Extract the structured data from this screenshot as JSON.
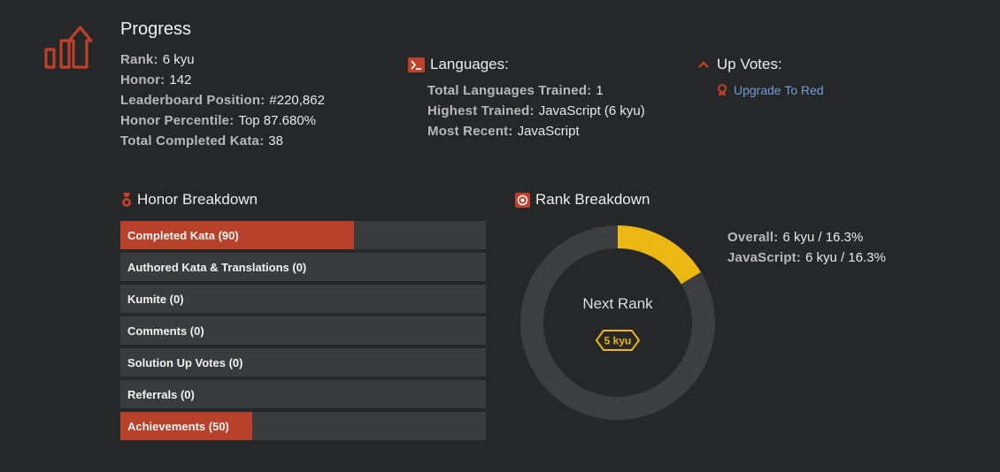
{
  "progress": {
    "title": "Progress",
    "stats": [
      {
        "label": "Rank:",
        "value": "6 kyu"
      },
      {
        "label": "Honor:",
        "value": "142"
      },
      {
        "label": "Leaderboard Position:",
        "value": "#220,862"
      },
      {
        "label": "Honor Percentile:",
        "value": "Top 87.680%"
      },
      {
        "label": "Total Completed Kata:",
        "value": "38"
      }
    ]
  },
  "languages": {
    "title": "Languages:",
    "icon": "terminal-icon",
    "stats": [
      {
        "label": "Total Languages Trained:",
        "value": "1"
      },
      {
        "label": "Highest Trained:",
        "value": "JavaScript (6 kyu)"
      },
      {
        "label": "Most Recent:",
        "value": "JavaScript"
      }
    ]
  },
  "upvotes": {
    "title": "Up Votes:",
    "icon": "chevron-up-icon",
    "link": {
      "label": "Upgrade To Red",
      "icon": "ribbon-icon"
    }
  },
  "honor_breakdown": {
    "title": "Honor Breakdown",
    "icon": "medal-icon",
    "bars": [
      {
        "label": "Completed Kata (90)",
        "fill": 0.64
      },
      {
        "label": "Authored Kata & Translations (0)",
        "fill": 0
      },
      {
        "label": "Kumite (0)",
        "fill": 0
      },
      {
        "label": "Comments (0)",
        "fill": 0
      },
      {
        "label": "Solution Up Votes (0)",
        "fill": 0
      },
      {
        "label": "Referrals (0)",
        "fill": 0
      },
      {
        "label": "Achievements (50)",
        "fill": 0.36
      }
    ]
  },
  "rank_breakdown": {
    "title": "Rank Breakdown",
    "icon": "target-icon",
    "donut": {
      "progress": 0.163,
      "center_label": "Next Rank",
      "badge": "5 kyu"
    },
    "stats": [
      {
        "label": "Overall:",
        "value": "6 kyu / 16.3%"
      },
      {
        "label": "JavaScript:",
        "value": "6 kyu / 16.3%"
      }
    ]
  },
  "colors": {
    "accent_red": "#c0412a",
    "bar_fill": "#b7412a",
    "rank_yellow": "#ecb613",
    "link_blue": "#6f9fd8"
  }
}
